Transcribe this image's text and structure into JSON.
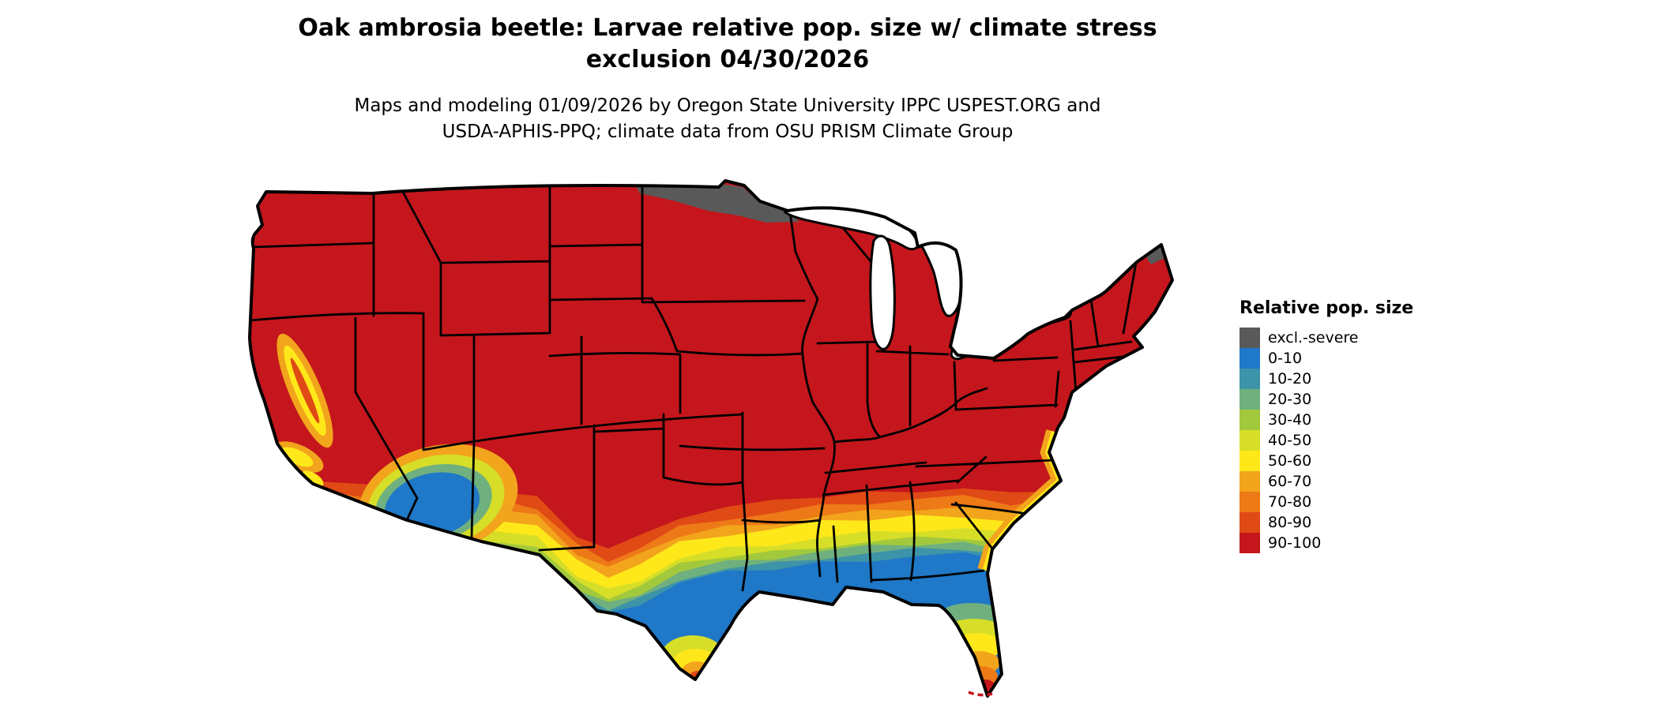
{
  "title": {
    "line1": "Oak ambrosia beetle: Larvae relative pop. size w/ climate stress",
    "line2": "exclusion 04/30/2026"
  },
  "subtitle": {
    "line1": "Maps and modeling 01/09/2026 by Oregon State University IPPC USPEST.ORG and",
    "line2": "USDA-APHIS-PPQ; climate data from OSU PRISM Climate Group"
  },
  "legend": {
    "title": "Relative pop. size",
    "items": [
      {
        "label": "excl.-severe",
        "color": "#595959"
      },
      {
        "label": "0-10",
        "color": "#1f78c8"
      },
      {
        "label": "10-20",
        "color": "#3d93a8"
      },
      {
        "label": "20-30",
        "color": "#6fb07e"
      },
      {
        "label": "30-40",
        "color": "#a2c93c"
      },
      {
        "label": "40-50",
        "color": "#d6de28"
      },
      {
        "label": "50-60",
        "color": "#ffe81a"
      },
      {
        "label": "60-70",
        "color": "#f2a51c"
      },
      {
        "label": "70-80",
        "color": "#ee7917"
      },
      {
        "label": "80-90",
        "color": "#e04a15"
      },
      {
        "label": "90-100",
        "color": "#c4161c"
      }
    ]
  },
  "map": {
    "region": "Conterminous United States",
    "description": "Raster map of oak ambrosia beetle larvae relative population size; northern states mostly 90-100, banded gradient from 90-100 down to 0-10 across the southern tier, Gulf coast and Florida; excluded-severe climate stress zone over northern Minnesota and far northern Maine; low-value desert zone in southwest Arizona / southeast California; hot-colored core in the Central Valley of California, south Florida and south Texas"
  }
}
